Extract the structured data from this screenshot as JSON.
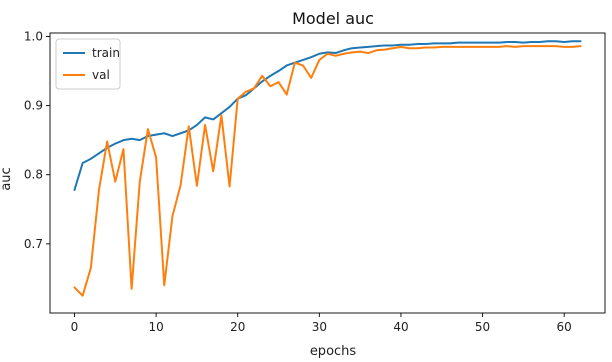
{
  "chart_data": {
    "type": "line",
    "title": "Model auc",
    "xlabel": "epochs",
    "ylabel": "auc",
    "xlim": [
      -3,
      65
    ],
    "ylim": [
      0.6,
      1.005
    ],
    "xticks": [
      0,
      10,
      20,
      30,
      40,
      50,
      60
    ],
    "yticks": [
      0.7,
      0.8,
      0.9,
      1.0
    ],
    "xtick_labels": [
      "0",
      "10",
      "20",
      "30",
      "40",
      "50",
      "60"
    ],
    "ytick_labels": [
      "0.7",
      "0.8",
      "0.9",
      "1.0"
    ],
    "legend": {
      "placement": "top-left",
      "entries": [
        "train",
        "val"
      ]
    },
    "grid": false,
    "series": [
      {
        "name": "train",
        "color": "#1f77b4",
        "x": [
          0,
          1,
          2,
          3,
          4,
          5,
          6,
          7,
          8,
          9,
          10,
          11,
          12,
          13,
          14,
          15,
          16,
          17,
          18,
          19,
          20,
          21,
          22,
          23,
          24,
          25,
          26,
          27,
          28,
          29,
          30,
          31,
          32,
          33,
          34,
          35,
          36,
          37,
          38,
          39,
          40,
          41,
          42,
          43,
          44,
          45,
          46,
          47,
          48,
          49,
          50,
          51,
          52,
          53,
          54,
          55,
          56,
          57,
          58,
          59,
          60,
          61,
          62
        ],
        "y": [
          0.778,
          0.817,
          0.823,
          0.831,
          0.839,
          0.845,
          0.85,
          0.852,
          0.85,
          0.856,
          0.858,
          0.86,
          0.856,
          0.86,
          0.864,
          0.872,
          0.883,
          0.88,
          0.889,
          0.898,
          0.91,
          0.915,
          0.925,
          0.935,
          0.943,
          0.95,
          0.958,
          0.962,
          0.966,
          0.97,
          0.975,
          0.977,
          0.976,
          0.98,
          0.983,
          0.984,
          0.985,
          0.986,
          0.987,
          0.987,
          0.988,
          0.988,
          0.989,
          0.989,
          0.99,
          0.99,
          0.99,
          0.991,
          0.991,
          0.991,
          0.991,
          0.991,
          0.991,
          0.992,
          0.992,
          0.991,
          0.992,
          0.992,
          0.993,
          0.993,
          0.992,
          0.993,
          0.993
        ]
      },
      {
        "name": "val",
        "color": "#ff7f0e",
        "x": [
          0,
          1,
          2,
          3,
          4,
          5,
          6,
          7,
          8,
          9,
          10,
          11,
          12,
          13,
          14,
          15,
          16,
          17,
          18,
          19,
          20,
          21,
          22,
          23,
          24,
          25,
          26,
          27,
          28,
          29,
          30,
          31,
          32,
          33,
          34,
          35,
          36,
          37,
          38,
          39,
          40,
          41,
          42,
          43,
          44,
          45,
          46,
          47,
          48,
          49,
          50,
          51,
          52,
          53,
          54,
          55,
          56,
          57,
          58,
          59,
          60,
          61,
          62
        ],
        "y": [
          0.637,
          0.625,
          0.665,
          0.778,
          0.848,
          0.79,
          0.837,
          0.635,
          0.79,
          0.866,
          0.825,
          0.64,
          0.74,
          0.785,
          0.87,
          0.784,
          0.872,
          0.805,
          0.886,
          0.783,
          0.91,
          0.92,
          0.925,
          0.943,
          0.928,
          0.934,
          0.916,
          0.962,
          0.958,
          0.94,
          0.966,
          0.975,
          0.972,
          0.975,
          0.977,
          0.978,
          0.976,
          0.98,
          0.981,
          0.983,
          0.985,
          0.983,
          0.983,
          0.984,
          0.984,
          0.985,
          0.985,
          0.985,
          0.985,
          0.985,
          0.985,
          0.985,
          0.985,
          0.986,
          0.985,
          0.986,
          0.986,
          0.986,
          0.986,
          0.986,
          0.985,
          0.985,
          0.986
        ]
      }
    ]
  }
}
